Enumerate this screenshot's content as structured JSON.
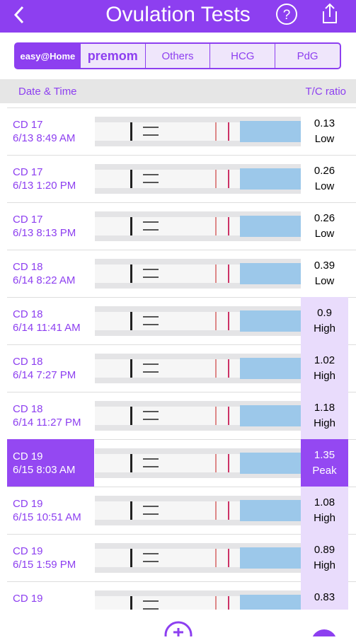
{
  "header": {
    "title": "Ovulation Tests"
  },
  "tabs": [
    "easy@Home",
    "premom",
    "Others",
    "HCG",
    "PdG"
  ],
  "columns": {
    "left": "Date & Time",
    "right": "T/C ratio"
  },
  "rows": [
    {
      "cd": "CD 17",
      "time": "6/13 8:49 AM",
      "ratio": "0.13",
      "level": "Low"
    },
    {
      "cd": "CD 17",
      "time": "6/13 1:20 PM",
      "ratio": "0.26",
      "level": "Low"
    },
    {
      "cd": "CD 17",
      "time": "6/13 8:13 PM",
      "ratio": "0.26",
      "level": "Low"
    },
    {
      "cd": "CD 18",
      "time": "6/14 8:22 AM",
      "ratio": "0.39",
      "level": "Low"
    },
    {
      "cd": "CD 18",
      "time": "6/14 11:41 AM",
      "ratio": "0.9",
      "level": "High"
    },
    {
      "cd": "CD 18",
      "time": "6/14 7:27 PM",
      "ratio": "1.02",
      "level": "High"
    },
    {
      "cd": "CD 18",
      "time": "6/14 11:27 PM",
      "ratio": "1.18",
      "level": "High"
    },
    {
      "cd": "CD 19",
      "time": "6/15 8:03 AM",
      "ratio": "1.35",
      "level": "Peak"
    },
    {
      "cd": "CD 19",
      "time": "6/15 10:51 AM",
      "ratio": "1.08",
      "level": "High"
    },
    {
      "cd": "CD 19",
      "time": "6/15 1:59 PM",
      "ratio": "0.89",
      "level": "High"
    },
    {
      "cd": "CD 19",
      "ratio": "0.83"
    }
  ]
}
